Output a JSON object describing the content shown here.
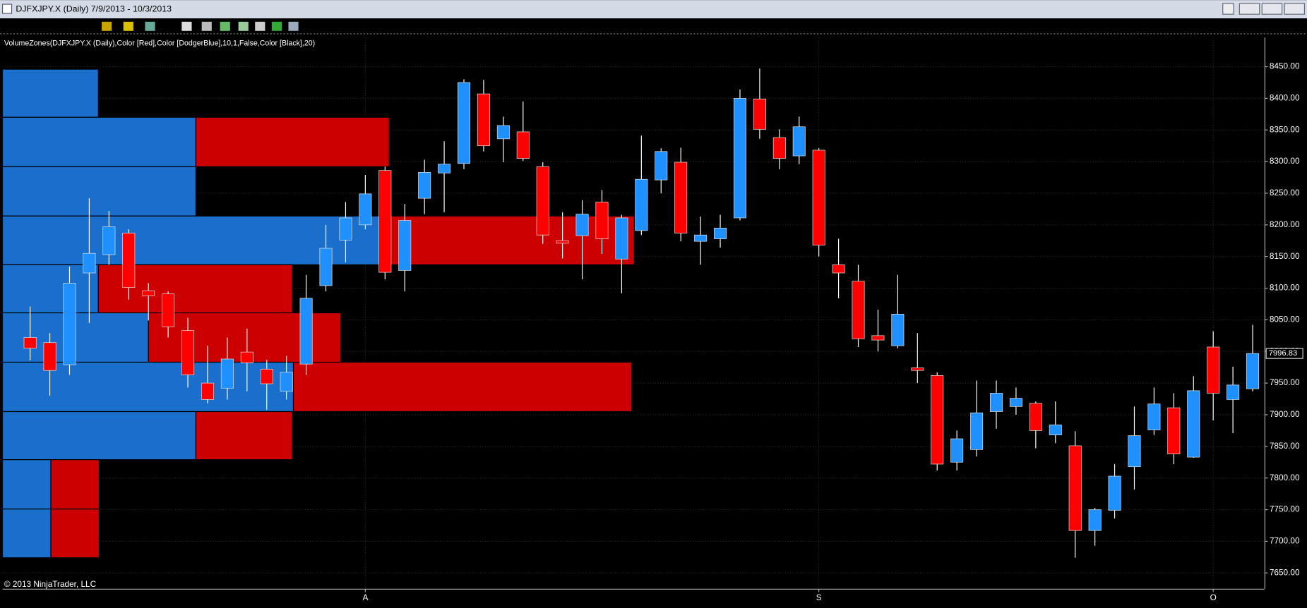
{
  "chart_data": {
    "type": "candlestick",
    "title": "DJFXJPY.X (Daily)  7/9/2013 - 10/3/2013",
    "indicator_label": "VolumeZones(DJFXJPY.X (Daily),Color [Red],Color [DodgerBlue],10,1,False,Color [Black],20)",
    "copyright": "© 2013 NinjaTrader, LLC",
    "up_color": "#1e90ff",
    "down_color": "#ff0000",
    "open": [
      8022,
      8014,
      7979,
      8124,
      8153,
      8187,
      8096,
      8091,
      8033,
      7950,
      7942,
      7999,
      7972,
      7937,
      7980,
      8104,
      8176,
      8200,
      8286,
      8128,
      8242,
      8282,
      8297,
      8407,
      8336,
      8347,
      8292,
      8175,
      8183,
      8236,
      8146,
      8191,
      8271,
      8299,
      8174,
      8178,
      8211,
      8399,
      8338,
      8309,
      8318,
      8137,
      8111,
      8025,
      8009,
      7974,
      7962,
      7825,
      7845,
      7905,
      7913,
      7918,
      7868,
      7851,
      7717,
      7749,
      7818,
      7876,
      7911,
      7833,
      8007,
      7924,
      7941
    ],
    "high": [
      8071,
      8029,
      8134,
      8242,
      8222,
      8193,
      8108,
      8095,
      8053,
      8009,
      8022,
      8036,
      7987,
      7993,
      8121,
      8200,
      8236,
      8279,
      8292,
      8233,
      8303,
      8332,
      8430,
      8429,
      8371,
      8395,
      8299,
      8220,
      8239,
      8255,
      8216,
      8341,
      8321,
      8322,
      8213,
      8216,
      8414,
      8447,
      8351,
      8371,
      8321,
      8178,
      8137,
      8066,
      8121,
      8029,
      7967,
      7875,
      7954,
      7954,
      7943,
      7921,
      7921,
      7874,
      7753,
      7822,
      7913,
      7943,
      7934,
      7961,
      8032,
      7976,
      8042
    ],
    "low": [
      7986,
      7930,
      7963,
      8045,
      8137,
      8082,
      8049,
      8022,
      7943,
      7918,
      7924,
      7937,
      7908,
      7924,
      7963,
      8095,
      8141,
      8193,
      8114,
      8095,
      8217,
      8220,
      8288,
      8316,
      8299,
      8301,
      8170,
      8147,
      8114,
      8154,
      8092,
      8184,
      8250,
      8174,
      8137,
      8164,
      8207,
      8336,
      8288,
      8296,
      8150,
      8084,
      8007,
      8000,
      8005,
      7950,
      7812,
      7812,
      7834,
      7878,
      7900,
      7847,
      7855,
      7674,
      7693,
      7736,
      7782,
      7868,
      7822,
      7832,
      7891,
      7871,
      7937
    ],
    "close": [
      8005,
      7970,
      8108,
      8155,
      8197,
      8101,
      8088,
      8039,
      7963,
      7924,
      7988,
      7982,
      7949,
      7967,
      8084,
      8163,
      8211,
      8249,
      8125,
      8207,
      8283,
      8296,
      8425,
      8325,
      8357,
      8305,
      8184,
      8171,
      8217,
      8178,
      8211,
      8272,
      8316,
      8187,
      8184,
      8195,
      8400,
      8351,
      8305,
      8355,
      8168,
      8124,
      8020,
      8018,
      8059,
      7970,
      7822,
      7862,
      7903,
      7934,
      7926,
      7875,
      7884,
      7717,
      7750,
      7803,
      7867,
      7917,
      7838,
      7938,
      7934,
      7947,
      7996.83
    ],
    "last_price": 7996.83,
    "xlim": [
      -1.4,
      62.6
    ],
    "xticks": [
      {
        "value": 17,
        "label": "A"
      },
      {
        "value": 40,
        "label": "S"
      },
      {
        "value": 60,
        "label": "O"
      }
    ],
    "ylim": [
      7625,
      8496
    ],
    "yticks": [
      {
        "value": 7650,
        "label": "7650.00"
      },
      {
        "value": 7700,
        "label": "7700.00"
      },
      {
        "value": 7750,
        "label": "7750.00"
      },
      {
        "value": 7800,
        "label": "7800.00"
      },
      {
        "value": 7850,
        "label": "7850.00"
      },
      {
        "value": 7900,
        "label": "7900.00"
      },
      {
        "value": 7950,
        "label": "7950.00"
      },
      {
        "value": 8000,
        "label": "8000.00"
      },
      {
        "value": 8050,
        "label": "8050.00"
      },
      {
        "value": 8100,
        "label": "8100.00"
      },
      {
        "value": 8150,
        "label": "8150.00"
      },
      {
        "value": 8200,
        "label": "8200.00"
      },
      {
        "value": 8250,
        "label": "8250.00"
      },
      {
        "value": 8300,
        "label": "8300.00"
      },
      {
        "value": 8350,
        "label": "8350.00"
      },
      {
        "value": 8400,
        "label": "8400.00"
      },
      {
        "value": 8450,
        "label": "8450.00"
      }
    ],
    "grid": true,
    "volume_zones": {
      "up_color": "#1b6fcc",
      "down_color": "#cc0000",
      "zones": [
        {
          "high": 8446,
          "low": 8370,
          "up_volume": 115,
          "down_volume": 0
        },
        {
          "high": 8370,
          "low": 8292,
          "up_volume": 232,
          "down_volume": 232
        },
        {
          "high": 8292,
          "low": 8214,
          "up_volume": 232,
          "down_volume": 0
        },
        {
          "high": 8214,
          "low": 8137,
          "up_volume": 455,
          "down_volume": 303
        },
        {
          "high": 8137,
          "low": 8061,
          "up_volume": 115,
          "down_volume": 233
        },
        {
          "high": 8061,
          "low": 7983,
          "up_volume": 175,
          "down_volume": 231
        },
        {
          "high": 7983,
          "low": 7905,
          "up_volume": 349,
          "down_volume": 406
        },
        {
          "high": 7905,
          "low": 7829,
          "up_volume": 232,
          "down_volume": 116
        },
        {
          "high": 7829,
          "low": 7751,
          "up_volume": 58,
          "down_volume": 58
        },
        {
          "high": 7751,
          "low": 7674,
          "up_volume": 58,
          "down_volume": 58
        }
      ]
    }
  }
}
